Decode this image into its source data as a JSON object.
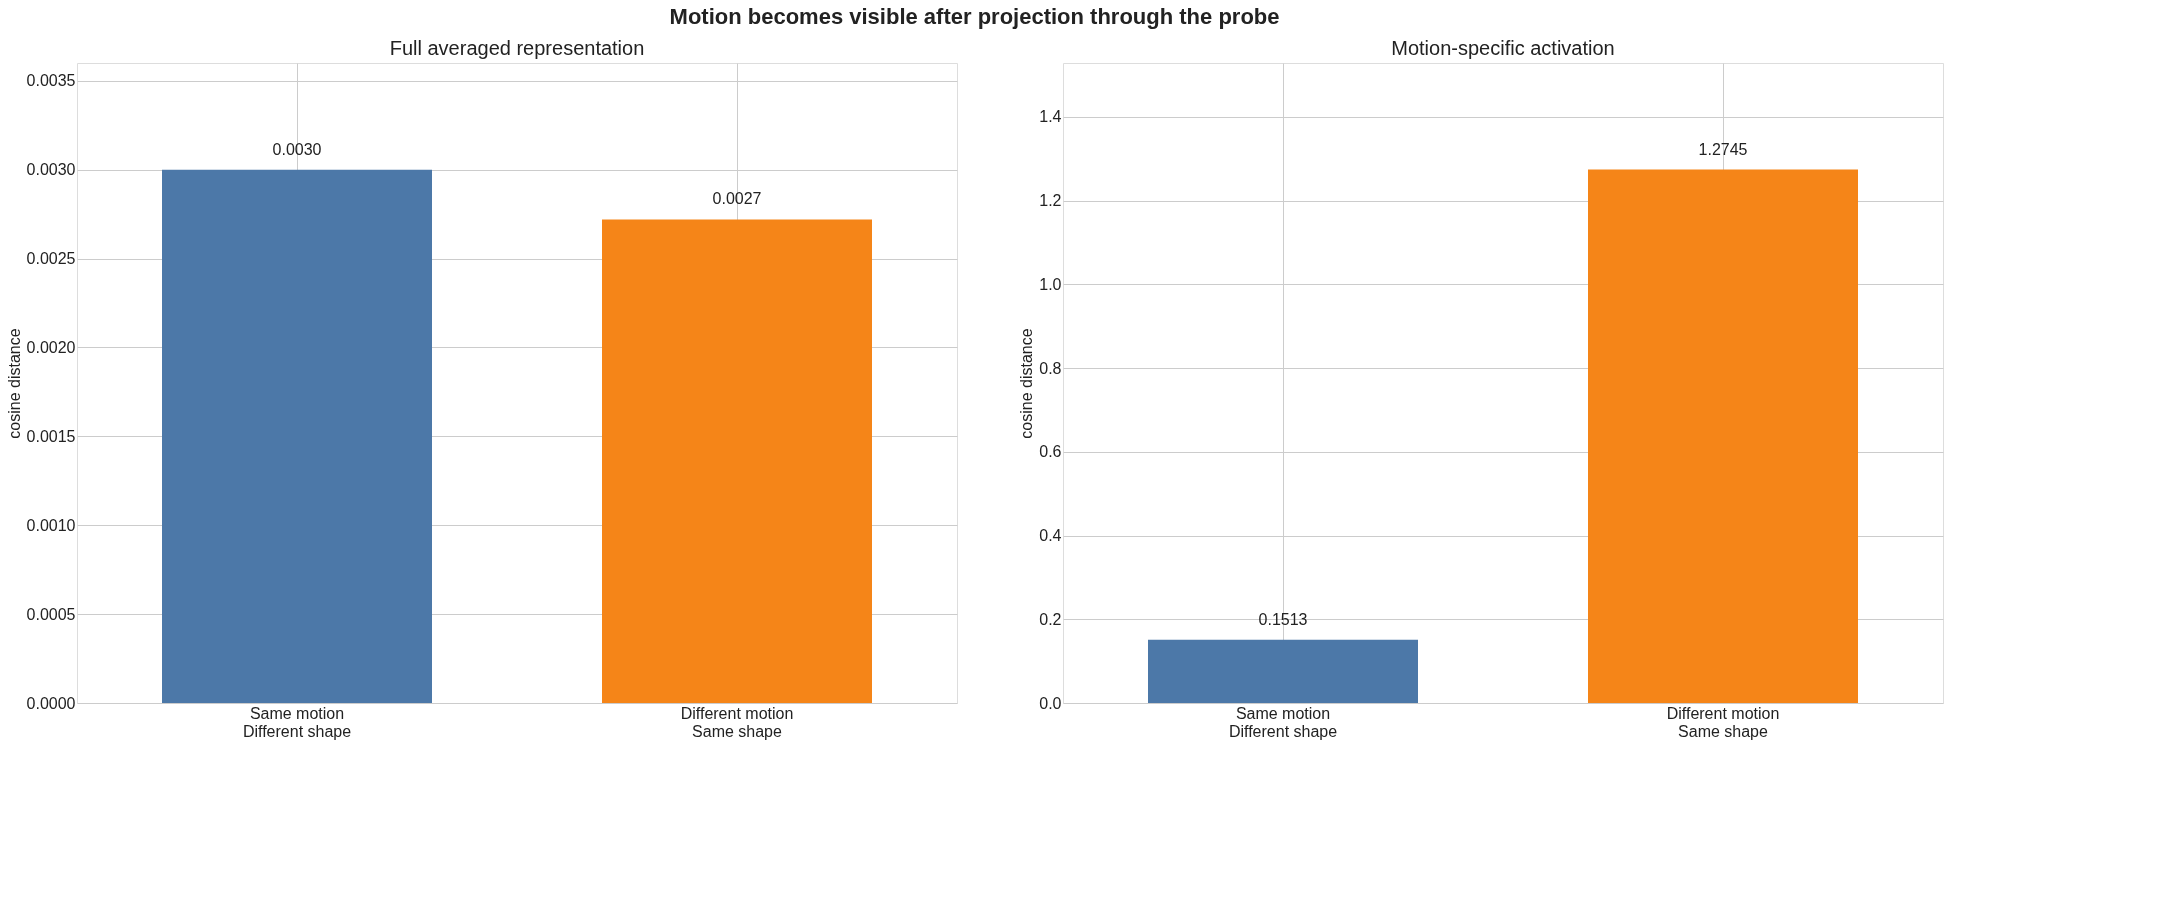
{
  "chart_data": [
    {
      "type": "bar",
      "title": "Full averaged representation",
      "ylabel": "cosine distance",
      "categories": [
        "Same motion\nDifferent shape",
        "Different motion\nSame shape"
      ],
      "values": [
        0.003,
        0.00272
      ],
      "value_labels": [
        "0.0030",
        "0.0027"
      ],
      "colors": [
        "#4c78a8",
        "#f58518"
      ],
      "ylim": [
        0,
        0.0036
      ],
      "yticks": [
        {
          "value": 0,
          "label": "0.0000"
        },
        {
          "value": 0.0005,
          "label": "0.0005"
        },
        {
          "value": 0.001,
          "label": "0.0010"
        },
        {
          "value": 0.0015,
          "label": "0.0015"
        },
        {
          "value": 0.002,
          "label": "0.0020"
        },
        {
          "value": 0.0025,
          "label": "0.0025"
        },
        {
          "value": 0.003,
          "label": "0.0030"
        },
        {
          "value": 0.0035,
          "label": "0.0035"
        }
      ],
      "grid": true,
      "annotations": [
        "Motion becomes visible after projection through the probe"
      ]
    },
    {
      "type": "bar",
      "title": "Motion-specific activation",
      "ylabel": "cosine distance",
      "categories": [
        "Same motion\nDifferent shape",
        "Different motion\nSame shape"
      ],
      "values": [
        0.1513,
        1.2745
      ],
      "data_labels": true,
      "colors": [
        "#4c78a8",
        "#f58518"
      ],
      "ylim": [
        0,
        1.529
      ],
      "yticks": [
        {
          "value": 0,
          "label": "0.0"
        },
        {
          "value": 0.2,
          "label": "0.2"
        },
        {
          "value": 0.4,
          "label": "0.4"
        },
        {
          "value": 0.6,
          "label": "0.6"
        },
        {
          "value": 0.8,
          "label": "0.8"
        },
        {
          "value": 1.0,
          "label": "1.0"
        },
        {
          "value": 1.2,
          "label": "1.2"
        },
        {
          "value": 1.4,
          "label": "1.4"
        }
      ],
      "grid": true
    }
  ]
}
